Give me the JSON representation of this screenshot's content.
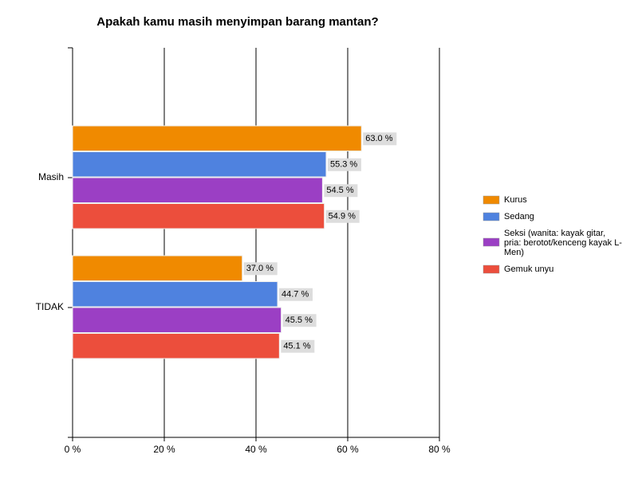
{
  "chart_data": {
    "type": "bar",
    "orientation": "horizontal",
    "title": "Apakah kamu masih menyimpan barang mantan?",
    "categories": [
      "Masih",
      "TIDAK"
    ],
    "series": [
      {
        "name": "Kurus",
        "color": "#f08a00",
        "values": [
          63.0,
          37.0
        ],
        "value_labels": [
          "63.0 %",
          "37.0 %"
        ]
      },
      {
        "name": "Sedang",
        "color": "#4f82df",
        "values": [
          55.3,
          44.7
        ],
        "value_labels": [
          "55.3 %",
          "44.7 %"
        ]
      },
      {
        "name": "Seksi (wanita: kayak gitar, pria: berotot/kenceng kayak L-Men)",
        "color": "#9b3fc4",
        "values": [
          54.5,
          45.5
        ],
        "value_labels": [
          "54.5 %",
          "45.5 %"
        ]
      },
      {
        "name": "Gemuk unyu",
        "color": "#ec4e3c",
        "values": [
          54.9,
          45.1
        ],
        "value_labels": [
          "54.9 %",
          "45.1 %"
        ]
      }
    ],
    "xlim": [
      0,
      80
    ],
    "xticks": [
      {
        "value": 0,
        "label": "0 %"
      },
      {
        "value": 20,
        "label": "20 %"
      },
      {
        "value": 40,
        "label": "40 %"
      },
      {
        "value": 60,
        "label": "60 %"
      },
      {
        "value": 80,
        "label": "80 %"
      }
    ],
    "grid": true,
    "legend": "right"
  }
}
